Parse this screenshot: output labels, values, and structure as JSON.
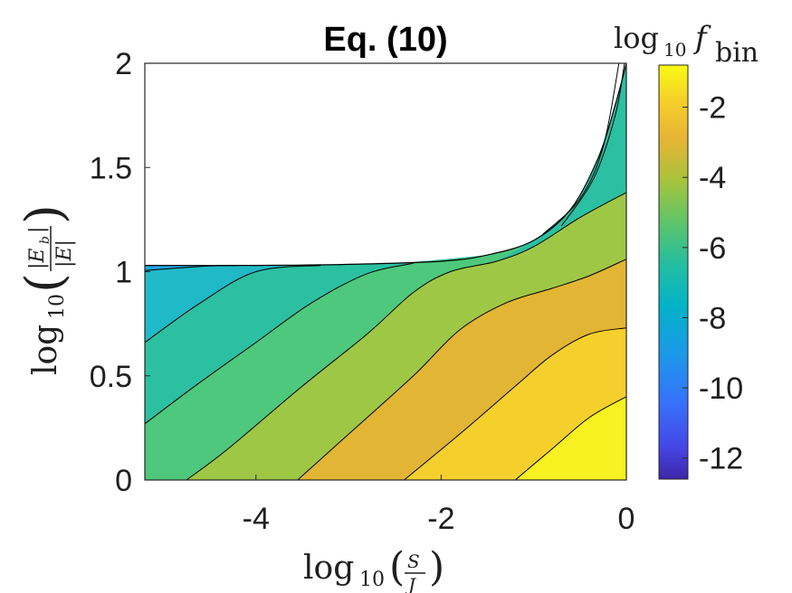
{
  "chart_data": {
    "type": "contour",
    "title": "Eq. (10)",
    "x_axis": {
      "label": "log10(S/J)",
      "label_prefix": "log",
      "label_sub": "10",
      "label_num": "S",
      "label_den": "J",
      "range": [
        -5.2,
        0
      ],
      "ticks": [
        -4,
        -2,
        0
      ],
      "tick_labels": [
        "-4",
        "-2",
        "0"
      ]
    },
    "y_axis": {
      "label": "log10(|E_b|/|E|)",
      "label_prefix": "log",
      "label_sub": "10",
      "label_num": "|E",
      "label_num_sub": "b",
      "label_den": "|E|",
      "range": [
        0,
        2
      ],
      "ticks": [
        0,
        0.5,
        1,
        1.5,
        2
      ],
      "tick_labels": [
        "0",
        "0.5",
        "1",
        "1.5",
        "2"
      ]
    },
    "colorbar": {
      "label": "log10 f_bin",
      "label_prefix": "log",
      "label_sub": "10",
      "label_var": "f",
      "label_var_sub": "bin",
      "range": [
        -12.6,
        -0.8
      ],
      "ticks": [
        -2,
        -4,
        -6,
        -8,
        -10,
        -12
      ],
      "tick_labels": [
        "-2",
        "-4",
        "-6",
        "-8",
        "-10",
        "-12"
      ],
      "colormap": "parula"
    },
    "levels": [
      -12,
      -10,
      -8,
      -6,
      -4,
      -2
    ],
    "region_boundary": {
      "description": "filled region ends where log10(|E_b|/|E|) exceeds the allowed limit",
      "points": [
        [
          -5.2,
          1.03
        ],
        [
          -4.0,
          1.03
        ],
        [
          -3.0,
          1.035
        ],
        [
          -2.0,
          1.05
        ],
        [
          -1.5,
          1.08
        ],
        [
          -1.0,
          1.15
        ],
        [
          -0.6,
          1.3
        ],
        [
          -0.3,
          1.55
        ],
        [
          -0.12,
          1.8
        ],
        [
          0,
          2.0
        ]
      ]
    },
    "contours": [
      {
        "level": -8,
        "points": [
          [
            -5.2,
            1.005
          ],
          [
            -4.6,
            1.025
          ],
          [
            -4.2,
            1.03
          ]
        ]
      },
      {
        "level": -7,
        "points": [
          [
            -5.2,
            0.66
          ],
          [
            -4.6,
            0.85
          ],
          [
            -4.0,
            1.0
          ],
          [
            -3.3,
            1.03
          ]
        ]
      },
      {
        "level": -6,
        "points": [
          [
            -5.2,
            0.27
          ],
          [
            -4.6,
            0.47
          ],
          [
            -4.0,
            0.66
          ],
          [
            -3.4,
            0.85
          ],
          [
            -2.8,
            0.99
          ],
          [
            -2.3,
            1.04
          ]
        ]
      },
      {
        "level": -5,
        "points": [
          [
            -4.75,
            0.0
          ],
          [
            -4.3,
            0.15
          ],
          [
            -3.5,
            0.45
          ],
          [
            -2.8,
            0.7
          ],
          [
            -2.3,
            0.9
          ],
          [
            -1.9,
            1.0
          ],
          [
            -1.4,
            1.05
          ],
          [
            -1.0,
            1.12
          ],
          [
            -0.5,
            1.26
          ],
          [
            0,
            1.38
          ]
        ]
      },
      {
        "level": -4,
        "points": [
          [
            -3.55,
            0.0
          ],
          [
            -3.0,
            0.22
          ],
          [
            -2.3,
            0.5
          ],
          [
            -1.8,
            0.72
          ],
          [
            -1.3,
            0.85
          ],
          [
            -0.8,
            0.92
          ],
          [
            -0.4,
            0.98
          ],
          [
            0,
            1.06
          ]
        ]
      },
      {
        "level": -3,
        "points": [
          [
            -2.4,
            0.0
          ],
          [
            -1.8,
            0.22
          ],
          [
            -1.2,
            0.45
          ],
          [
            -0.8,
            0.6
          ],
          [
            -0.4,
            0.7
          ],
          [
            0,
            0.73
          ]
        ]
      },
      {
        "level": -2,
        "points": [
          [
            -1.2,
            0.0
          ],
          [
            -0.8,
            0.15
          ],
          [
            -0.4,
            0.3
          ],
          [
            0,
            0.4
          ]
        ]
      }
    ],
    "bands": [
      {
        "level": -9,
        "color": "#1fa5e6"
      },
      {
        "level": -8,
        "color": "#1fb9c7"
      },
      {
        "level": -7,
        "color": "#2bc0a1"
      },
      {
        "level": -6,
        "color": "#4ec87c"
      },
      {
        "level": -5,
        "color": "#9fc746"
      },
      {
        "level": -4,
        "color": "#e2b534"
      },
      {
        "level": -3,
        "color": "#f5d02d"
      },
      {
        "level": -2,
        "color": "#f7f121"
      }
    ]
  }
}
